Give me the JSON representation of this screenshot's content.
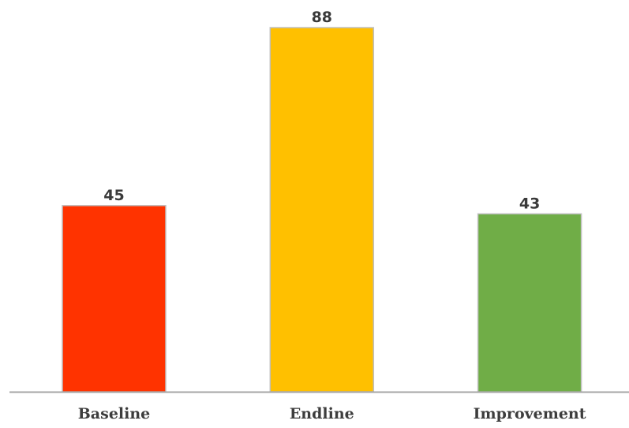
{
  "chart_data": {
    "type": "bar",
    "categories": [
      "Baseline",
      "Endline",
      "Improvement"
    ],
    "values": [
      45,
      88,
      43
    ],
    "colors": [
      "#ff3300",
      "#ffc000",
      "#70ad47"
    ],
    "bar_outline_color": "#bfbfbf",
    "axis_color": "#a6a6a6",
    "value_labels": [
      "45",
      "88",
      "43"
    ],
    "title": "",
    "xlabel": "",
    "ylabel": "",
    "ylim": [
      0,
      88
    ],
    "grid": false,
    "legend": "none"
  }
}
